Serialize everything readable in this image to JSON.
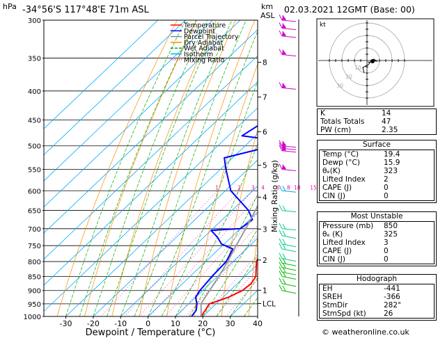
{
  "header": {
    "location": "-34°56'S  117°48'E  71m  ASL",
    "datetime": "02.03.2021  12GMT  (Base: 00)",
    "hpa_unit": "hPa",
    "km_unit": "km",
    "asl_unit": "ASL"
  },
  "chart_data": {
    "type": "skew-t",
    "xlabel": "Dewpoint / Temperature (°C)",
    "ylabel_right": "Mixing Ratio (g/kg)",
    "pressure_ticks": [
      300,
      350,
      400,
      450,
      500,
      550,
      600,
      650,
      700,
      750,
      800,
      850,
      900,
      950,
      1000
    ],
    "temperature_ticks": [
      -30,
      -20,
      -10,
      0,
      10,
      20,
      30,
      40
    ],
    "pressure_range": [
      300,
      1000
    ],
    "temperature_range_at_bottom": [
      -38,
      40
    ],
    "km_ticks": [
      {
        "label": "8",
        "p": 356
      },
      {
        "label": "7",
        "p": 410
      },
      {
        "label": "6",
        "p": 472
      },
      {
        "label": "5",
        "p": 541
      },
      {
        "label": "4",
        "p": 616
      },
      {
        "label": "3",
        "p": 701
      },
      {
        "label": "2",
        "p": 795
      },
      {
        "label": "1",
        "p": 899
      },
      {
        "label": "LCL",
        "p": 949
      }
    ],
    "mixing_ratio_labels": [
      "1",
      "2",
      "3",
      "4",
      "6",
      "8",
      "10",
      "15",
      "20",
      "25"
    ],
    "mixing_ratio_values": [
      1,
      2,
      3,
      4,
      6,
      8,
      10,
      15,
      20,
      25
    ],
    "legend": [
      {
        "name": "Temperature",
        "color": "#ff0000"
      },
      {
        "name": "Dewpoint",
        "color": "#0000ff"
      },
      {
        "name": "Parcel Trajectory",
        "color": "#888888"
      },
      {
        "name": "Dry Adiabat",
        "color": "#ff8800"
      },
      {
        "name": "Wet Adiabat",
        "color": "#00aa00"
      },
      {
        "name": "Isotherm",
        "color": "#00aaff"
      },
      {
        "name": "Mixing Ratio",
        "color": "#ff00aa"
      }
    ],
    "series": [
      {
        "name": "Temperature",
        "color": "#ff0000",
        "points": [
          [
            1000,
            19.4
          ],
          [
            975,
            18.5
          ],
          [
            950,
            17.5
          ],
          [
            925,
            22
          ],
          [
            900,
            24.5
          ],
          [
            875,
            25
          ],
          [
            850,
            24
          ],
          [
            800,
            18.5
          ],
          [
            750,
            15
          ],
          [
            700,
            13
          ],
          [
            650,
            8
          ],
          [
            600,
            3
          ],
          [
            550,
            -1
          ],
          [
            500,
            -7.5
          ],
          [
            475,
            -10
          ],
          [
            450,
            -12
          ],
          [
            400,
            -19.5
          ],
          [
            350,
            -27
          ],
          [
            300,
            -35
          ]
        ]
      },
      {
        "name": "Dewpoint",
        "color": "#0000ff",
        "points": [
          [
            1000,
            15.9
          ],
          [
            975,
            15.2
          ],
          [
            950,
            13
          ],
          [
            925,
            10
          ],
          [
            900,
            9
          ],
          [
            850,
            8
          ],
          [
            800,
            7.5
          ],
          [
            760,
            5
          ],
          [
            745,
            -1
          ],
          [
            725,
            -5
          ],
          [
            705,
            -10
          ],
          [
            700,
            0
          ],
          [
            675,
            1
          ],
          [
            650,
            -4
          ],
          [
            600,
            -18
          ],
          [
            550,
            -28
          ],
          [
            525,
            -33
          ],
          [
            500,
            -20
          ],
          [
            490,
            -19
          ],
          [
            480,
            -35
          ],
          [
            450,
            -32
          ],
          [
            400,
            -35
          ],
          [
            370,
            -42
          ],
          [
            350,
            -46
          ],
          [
            330,
            -45
          ],
          [
            300,
            -44
          ]
        ]
      },
      {
        "name": "Parcel Trajectory",
        "color": "#999999",
        "points": [
          [
            1000,
            19.4
          ],
          [
            950,
            14.5
          ],
          [
            900,
            12.5
          ],
          [
            850,
            10.5
          ],
          [
            800,
            8
          ],
          [
            750,
            5
          ],
          [
            700,
            2
          ],
          [
            650,
            -1.5
          ],
          [
            600,
            -5.5
          ],
          [
            550,
            -10
          ],
          [
            500,
            -15.5
          ],
          [
            450,
            -21.5
          ],
          [
            400,
            -28.5
          ],
          [
            350,
            -36.5
          ],
          [
            300,
            -46
          ]
        ]
      }
    ],
    "wind_barbs_p": [
      300,
      310,
      320,
      345,
      395,
      500,
      505,
      510,
      550,
      600,
      650,
      700,
      720,
      745,
      760,
      790,
      805,
      820,
      835,
      850,
      875,
      900
    ],
    "hodograph_rings": [
      "10",
      "20",
      "30"
    ],
    "hodograph_unit": "kt"
  },
  "stats": {
    "basic": [
      {
        "label": "K",
        "value": "14"
      },
      {
        "label": "Totals Totals",
        "value": "47"
      },
      {
        "label": "PW (cm)",
        "value": "2.35"
      }
    ],
    "surface": {
      "title": "Surface",
      "rows": [
        {
          "label": "Temp (°C)",
          "value": "19.4"
        },
        {
          "label": "Dewp (°C)",
          "value": "15.9"
        },
        {
          "label": "θₑ(K)",
          "value": "323"
        },
        {
          "label": "Lifted Index",
          "value": "2"
        },
        {
          "label": "CAPE (J)",
          "value": "0"
        },
        {
          "label": "CIN (J)",
          "value": "0"
        }
      ]
    },
    "most_unstable": {
      "title": "Most Unstable",
      "rows": [
        {
          "label": "Pressure (mb)",
          "value": "850"
        },
        {
          "label": "θₑ (K)",
          "value": "325"
        },
        {
          "label": "Lifted Index",
          "value": "3"
        },
        {
          "label": "CAPE (J)",
          "value": "0"
        },
        {
          "label": "CIN (J)",
          "value": "0"
        }
      ]
    },
    "hodograph": {
      "title": "Hodograph",
      "rows": [
        {
          "label": "EH",
          "value": "-441"
        },
        {
          "label": "SREH",
          "value": "-366"
        },
        {
          "label": "StmDir",
          "value": "282°"
        },
        {
          "label": "StmSpd (kt)",
          "value": "26"
        }
      ]
    }
  },
  "footer": "© weatheronline.co.uk"
}
